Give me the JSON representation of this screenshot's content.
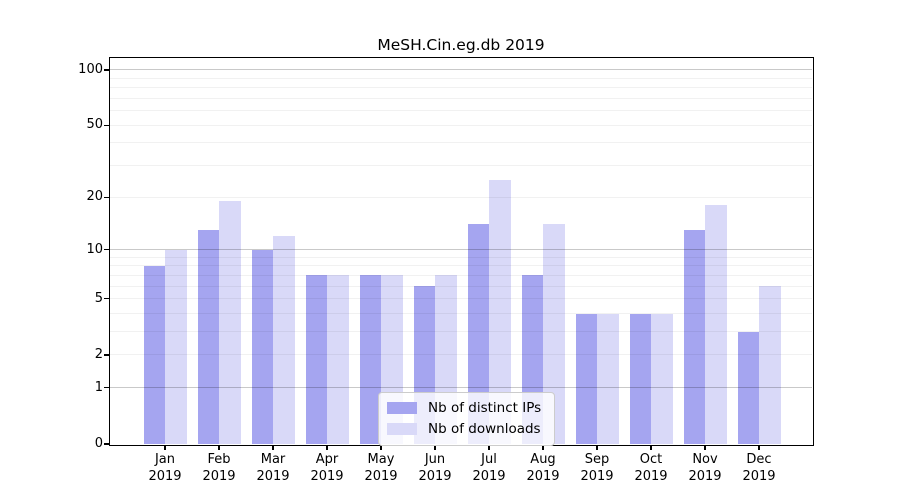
{
  "title": "MeSH.Cin.eg.db 2019",
  "background_color": "#ffffff",
  "axis_color": "#000000",
  "chart_data": {
    "type": "bar",
    "title": "MeSH.Cin.eg.db 2019",
    "categories": [
      "Jan",
      "Feb",
      "Mar",
      "Apr",
      "May",
      "Jun",
      "Jul",
      "Aug",
      "Sep",
      "Oct",
      "Nov",
      "Dec"
    ],
    "year": "2019",
    "series": [
      {
        "name": "Nb of distinct IPs",
        "color": "#a5a5f0",
        "values": [
          8,
          13,
          10,
          7,
          7,
          6,
          14,
          7,
          4,
          4,
          13,
          3
        ]
      },
      {
        "name": "Nb of downloads",
        "color": "#d9d9f8",
        "values": [
          10,
          19,
          12,
          7,
          7,
          7,
          25,
          14,
          4,
          4,
          18,
          6
        ]
      }
    ],
    "y_scale": "log10(1+x)",
    "ylim": [
      0,
      116
    ],
    "y_ticks": [
      100,
      50,
      20,
      10,
      5,
      2,
      1,
      0
    ],
    "y_major_gridlines": [
      1,
      10,
      100
    ],
    "y_minor_gridlines": [
      2,
      3,
      4,
      5,
      6,
      7,
      8,
      9,
      20,
      30,
      40,
      50,
      60,
      70,
      80,
      90
    ],
    "grid": true,
    "legend_position": "inside-bottom-center"
  }
}
